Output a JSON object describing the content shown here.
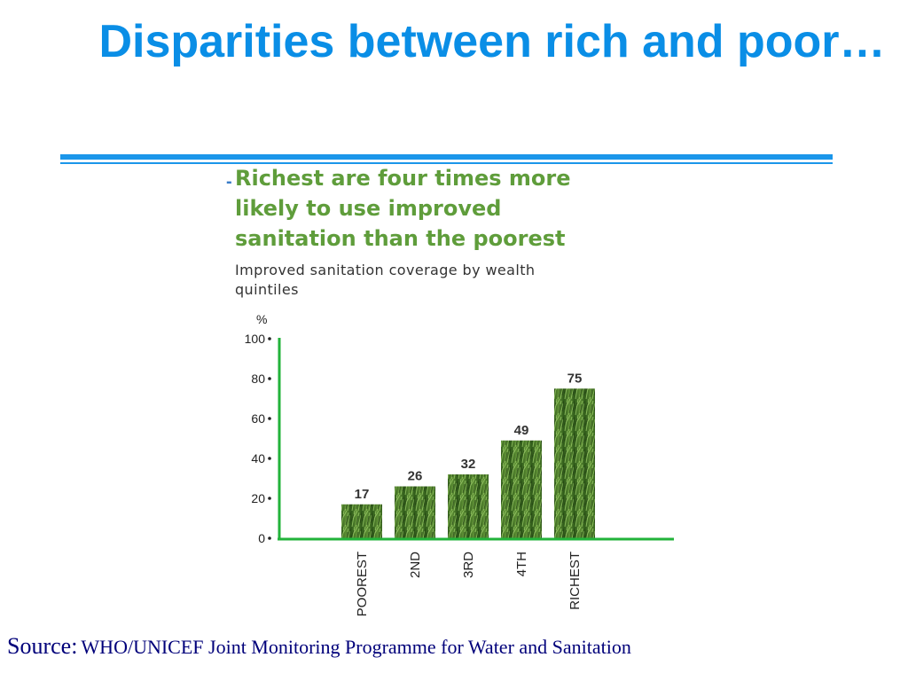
{
  "slide": {
    "title": "Disparities between rich and poor…",
    "source_label": "Source:",
    "source_text": "WHO/UNICEF Joint Monitoring Programme for Water and Sanitation"
  },
  "figure": {
    "bullet": "-",
    "headline": "Richest are four times more likely to use improved sanitation than the poorest"
  },
  "colors": {
    "title": "#0a8ee6",
    "rule": "#1b96ea",
    "headline": "#5f9d3b",
    "axis": "#22b33a",
    "bar_dark": "#2f5a1a",
    "bar_light": "#9ed06a",
    "source": "#00007a"
  },
  "chart_data": {
    "type": "bar",
    "title": "Improved sanitation coverage by wealth quintiles",
    "ylabel": "%",
    "ylim": [
      0,
      100
    ],
    "yticks": [
      0,
      20,
      40,
      60,
      80,
      100
    ],
    "categories": [
      "POOREST",
      "2ND",
      "3RD",
      "4TH",
      "RICHEST"
    ],
    "values": [
      17,
      26,
      32,
      49,
      75
    ],
    "grid": false,
    "legend": "none"
  }
}
